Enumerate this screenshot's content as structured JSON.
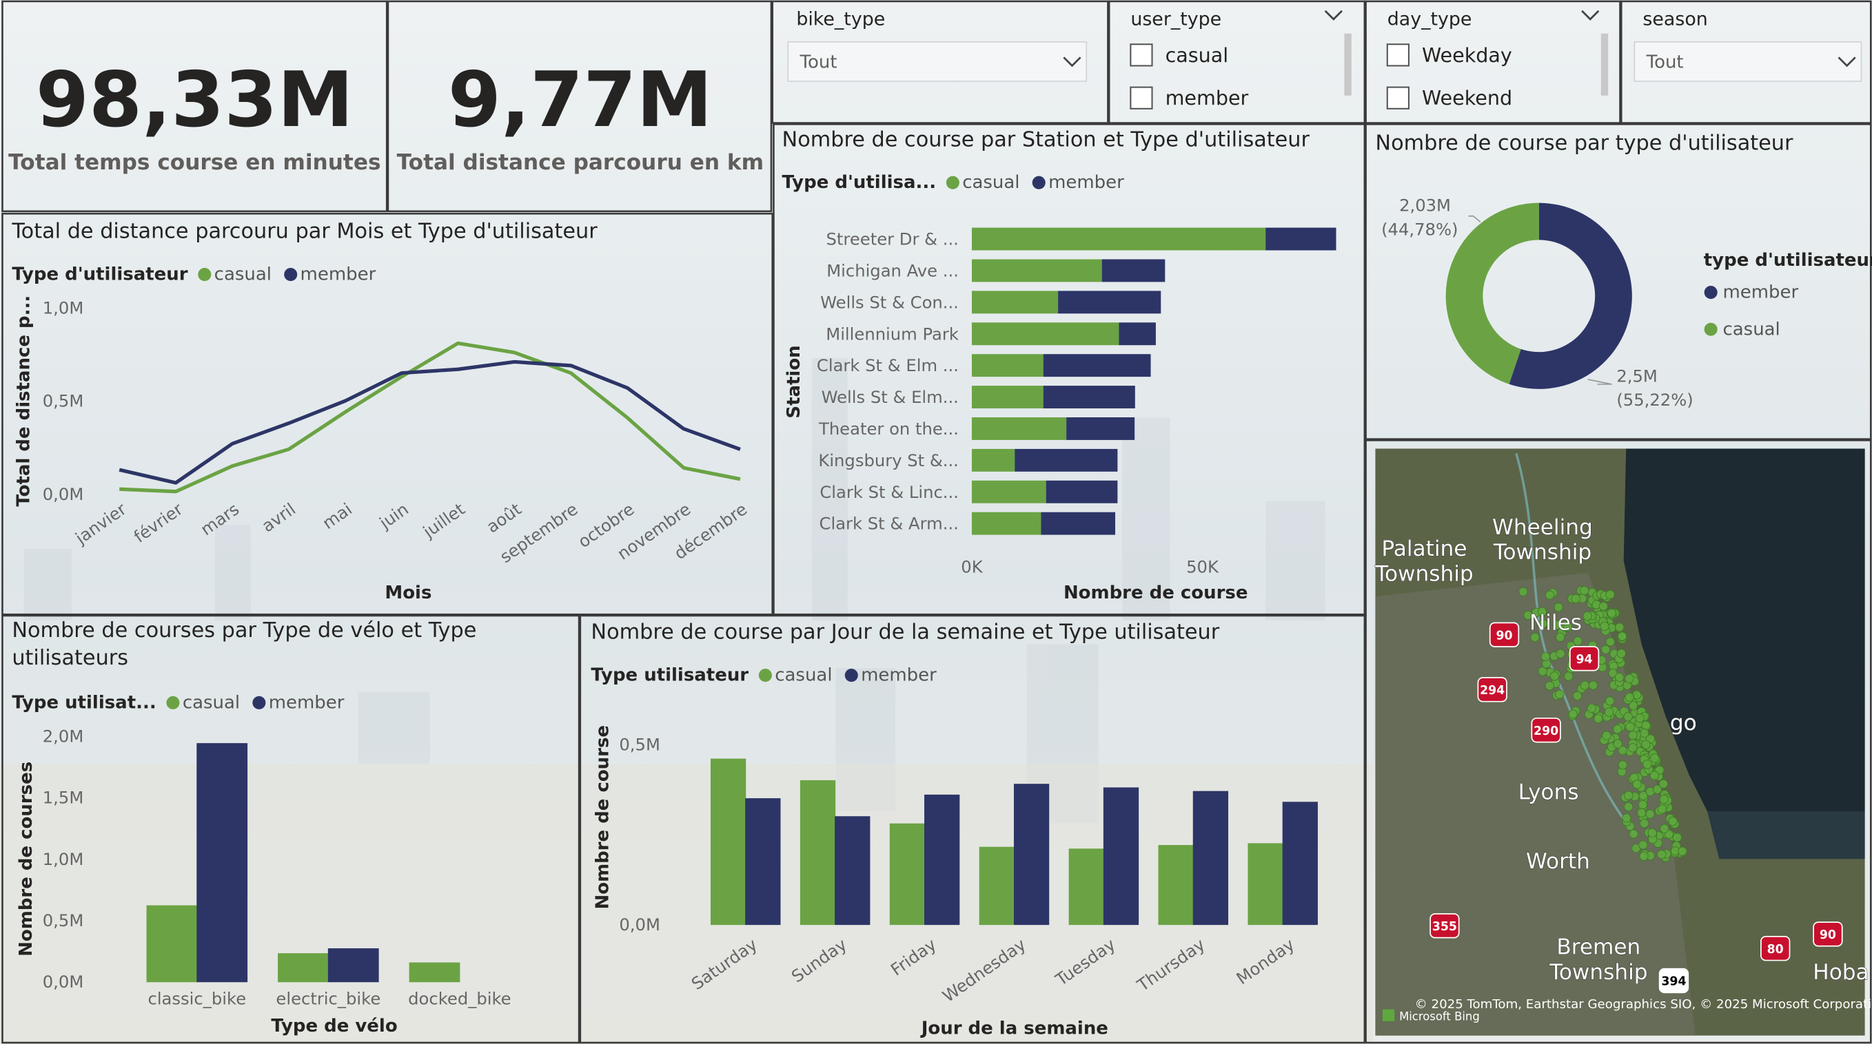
{
  "kpis": [
    {
      "value": "98,33M",
      "label": "Total temps course en minutes"
    },
    {
      "value": "9,77M",
      "label": "Total distance parcouru en km"
    }
  ],
  "slicers": [
    {
      "title": "bike_type",
      "selected": "Tout"
    },
    {
      "title": "user_type",
      "options": [
        "casual",
        "member"
      ]
    },
    {
      "title": "day_type",
      "options": [
        "Weekday",
        "Weekend"
      ]
    },
    {
      "title": "season",
      "selected": "Tout"
    }
  ],
  "chart_data": [
    {
      "type": "line",
      "title": "Total de distance parcouru par Mois et Type d'utilisateur",
      "legend_title": "Type d'utilisateur",
      "x_label": "Mois",
      "y_label": "Total de distance p...",
      "categories": [
        "janvier",
        "février",
        "mars",
        "avril",
        "mai",
        "juin",
        "juillet",
        "août",
        "septembre",
        "octobre",
        "novembre",
        "décembre"
      ],
      "series": [
        {
          "name": "casual",
          "color": "#6ba344",
          "values": [
            26000,
            13000,
            150000,
            240000,
            440000,
            630000,
            810000,
            760000,
            650000,
            410000,
            140000,
            80000
          ]
        },
        {
          "name": "member",
          "color": "#2d3567",
          "values": [
            130000,
            60000,
            270000,
            380000,
            500000,
            650000,
            670000,
            710000,
            690000,
            570000,
            350000,
            240000
          ]
        }
      ],
      "ylim": [
        0,
        1000000
      ],
      "yticks": [
        {
          "value": 0,
          "label": "0,0M"
        },
        {
          "value": 500000,
          "label": "0,5M"
        },
        {
          "value": 1000000,
          "label": "1,0M"
        }
      ],
      "grid": false
    },
    {
      "type": "bar",
      "orientation": "horizontal",
      "stacked": true,
      "title": "Nombre de course par Station et Type d'utilisateur",
      "legend_title": "Type d'utilisa...",
      "x_label": "Nombre de course",
      "y_label": "Station",
      "categories": [
        "Streeter Dr & ...",
        "Michigan Ave ...",
        "Wells St & Con...",
        "Millennium Park",
        "Clark St & Elm ...",
        "Wells St & Elm...",
        "Theater on the...",
        "Kingsbury St &...",
        "Clark St & Linc...",
        "Clark St & Arm..."
      ],
      "series": [
        {
          "name": "casual",
          "color": "#6ba344",
          "values": [
            63700,
            28200,
            18700,
            31900,
            15500,
            15500,
            20500,
            9300,
            16100,
            15000
          ]
        },
        {
          "name": "member",
          "color": "#2d3567",
          "values": [
            15300,
            13700,
            22300,
            8000,
            23300,
            19900,
            14800,
            22300,
            15500,
            16100
          ]
        }
      ],
      "xlim": [
        0,
        80000
      ],
      "xticks": [
        {
          "value": 0,
          "label": "0K"
        },
        {
          "value": 50000,
          "label": "50K"
        }
      ],
      "grid": false
    },
    {
      "type": "pie",
      "donut": true,
      "title": "Nombre de course par type d'utilisateur",
      "legend_title": "type d'utilisateur",
      "categories": [
        "member",
        "casual"
      ],
      "colors": [
        "#2d3567",
        "#6ba344"
      ],
      "values": [
        2500000,
        2030000
      ],
      "value_labels": [
        "2,5M",
        "2,03M"
      ],
      "percent_labels": [
        "(55,22%)",
        "(44,78%)"
      ]
    },
    {
      "type": "bar",
      "orientation": "vertical",
      "stacked": false,
      "title": "Nombre de courses par Type de vélo et Type utilisateurs",
      "legend_title": "Type utilisat...",
      "x_label": "Type de vélo",
      "y_label": "Nombre de courses",
      "categories": [
        "classic_bike",
        "electric_bike",
        "docked_bike"
      ],
      "series": [
        {
          "name": "casual",
          "color": "#6ba344",
          "values": [
            620000,
            230000,
            155000
          ]
        },
        {
          "name": "member",
          "color": "#2d3567",
          "values": [
            1940000,
            270000,
            0
          ]
        }
      ],
      "ylim": [
        0,
        2000000
      ],
      "yticks": [
        {
          "value": 0,
          "label": "0,0M"
        },
        {
          "value": 500000,
          "label": "0,5M"
        },
        {
          "value": 1000000,
          "label": "1,0M"
        },
        {
          "value": 1500000,
          "label": "1,5M"
        },
        {
          "value": 2000000,
          "label": "2,0M"
        }
      ],
      "grid": false
    },
    {
      "type": "bar",
      "orientation": "vertical",
      "stacked": false,
      "title": "Nombre de course par Jour de la semaine et Type utilisateur",
      "legend_title": "Type utilisateur",
      "x_label": "Jour de la semaine",
      "y_label": "Nombre de course",
      "categories": [
        "Saturday",
        "Sunday",
        "Friday",
        "Wednesday",
        "Tuesday",
        "Thursday",
        "Monday"
      ],
      "series": [
        {
          "name": "casual",
          "color": "#6ba344",
          "values": [
            460000,
            400000,
            280000,
            215000,
            210000,
            220000,
            225000
          ]
        },
        {
          "name": "member",
          "color": "#2d3567",
          "values": [
            350000,
            300000,
            360000,
            390000,
            380000,
            370000,
            340000
          ]
        }
      ],
      "ylim": [
        0,
        550000
      ],
      "yticks": [
        {
          "value": 0,
          "label": "0,0M"
        },
        {
          "value": 500000,
          "label": "0,5M"
        }
      ],
      "grid": false
    }
  ],
  "map": {
    "labels": [
      [
        "Palatine",
        "Township"
      ],
      [
        "Wheeling",
        "Township"
      ],
      [
        "Niles"
      ],
      [
        "go"
      ],
      [
        "Lyons"
      ],
      [
        "Worth"
      ],
      [
        "Bremen",
        "Township"
      ],
      [
        "Hoba"
      ]
    ],
    "road_numbers": [
      "90",
      "94",
      "294",
      "290",
      "355",
      "394",
      "80",
      "90"
    ],
    "attribution": "© 2025 TomTom, Earthstar Geographics SIO, © 2025 Microsoft Corporation",
    "provider": "Microsoft Bing"
  }
}
